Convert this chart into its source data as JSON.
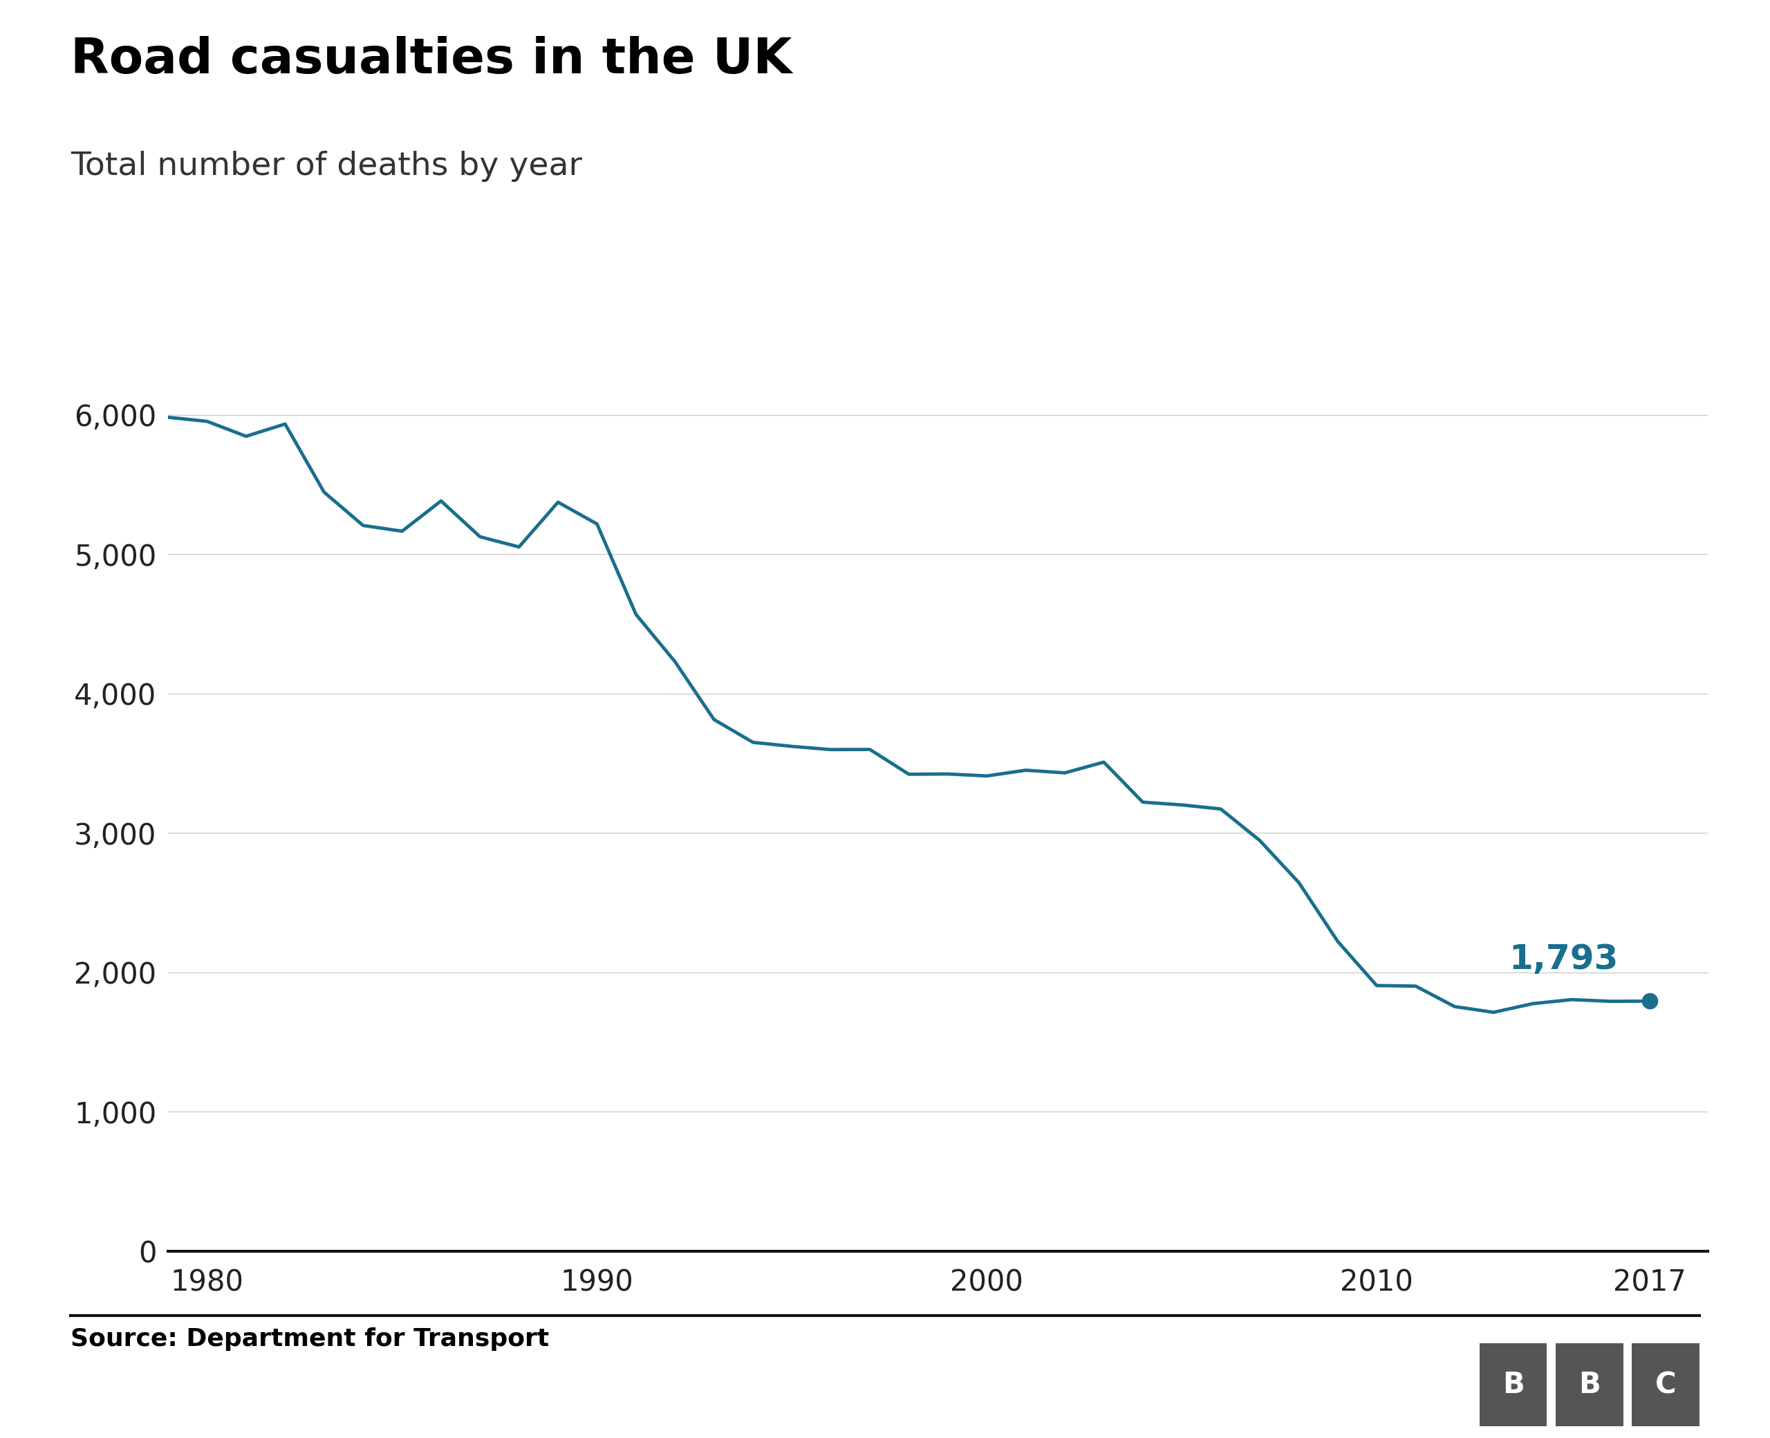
{
  "title": "Road casualties in the UK",
  "subtitle": "Total number of deaths by year",
  "source": "Source: Department for Transport",
  "line_color": "#1a6e8e",
  "background_color": "#ffffff",
  "years": [
    1979,
    1980,
    1981,
    1982,
    1983,
    1984,
    1985,
    1986,
    1987,
    1988,
    1989,
    1990,
    1991,
    1992,
    1993,
    1994,
    1995,
    1996,
    1997,
    1998,
    1999,
    2000,
    2001,
    2002,
    2003,
    2004,
    2005,
    2006,
    2007,
    2008,
    2009,
    2010,
    2011,
    2012,
    2013,
    2014,
    2015,
    2016,
    2017
  ],
  "values": [
    5982,
    5953,
    5846,
    5934,
    5445,
    5206,
    5165,
    5382,
    5125,
    5052,
    5373,
    5217,
    4568,
    4229,
    3814,
    3650,
    3621,
    3598,
    3599,
    3421,
    3423,
    3409,
    3450,
    3431,
    3508,
    3221,
    3201,
    3172,
    2946,
    2645,
    2222,
    1905,
    1901,
    1754,
    1713,
    1775,
    1804,
    1792,
    1793
  ],
  "xlim": [
    1979,
    2018.5
  ],
  "ylim": [
    0,
    6500
  ],
  "yticks": [
    0,
    1000,
    2000,
    3000,
    4000,
    5000,
    6000
  ],
  "ytick_labels": [
    "0",
    "1,000",
    "2,000",
    "3,000",
    "4,000",
    "5,000",
    "6,000"
  ],
  "xticks": [
    1980,
    1990,
    2000,
    2010,
    2017
  ],
  "last_label": "1,793",
  "last_year": 2017,
  "last_value": 1793,
  "title_fontsize": 52,
  "subtitle_fontsize": 34,
  "tick_fontsize": 30,
  "annotation_fontsize": 36,
  "source_fontsize": 26,
  "line_width": 3.5,
  "marker_size": 16,
  "grid_color": "#cccccc",
  "tick_color": "#222222",
  "axis_color": "#111111",
  "bbc_bg_color": "#555555",
  "bbc_text_color": "#ffffff"
}
